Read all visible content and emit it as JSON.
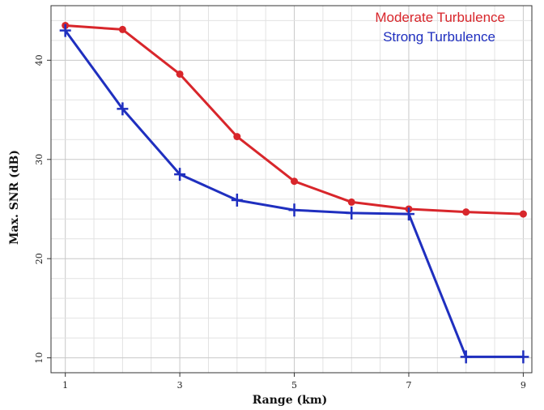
{
  "chart_data": {
    "type": "line",
    "title": "",
    "xlabel": "Range (km)",
    "ylabel": "Max. SNR (dB)",
    "xlim": [
      0.75,
      9.15
    ],
    "ylim": [
      8.5,
      45.5
    ],
    "x_ticks": [
      1,
      3,
      5,
      7,
      9
    ],
    "y_ticks": [
      10,
      20,
      30,
      40
    ],
    "grid": true,
    "legend_position": "top-right",
    "x": [
      1,
      2,
      3,
      4,
      5,
      6,
      7,
      8,
      9
    ],
    "series": [
      {
        "name": "Moderate Turbulence",
        "color": "#d8262b",
        "marker": "circle",
        "values": [
          43.5,
          43.1,
          38.6,
          32.3,
          27.8,
          25.7,
          25.0,
          24.7,
          24.5
        ]
      },
      {
        "name": "Strong Turbulence",
        "color": "#1f2fbf",
        "marker": "plus",
        "values": [
          43.0,
          35.1,
          28.5,
          25.9,
          24.9,
          24.6,
          24.5,
          10.1,
          10.1
        ]
      }
    ]
  }
}
